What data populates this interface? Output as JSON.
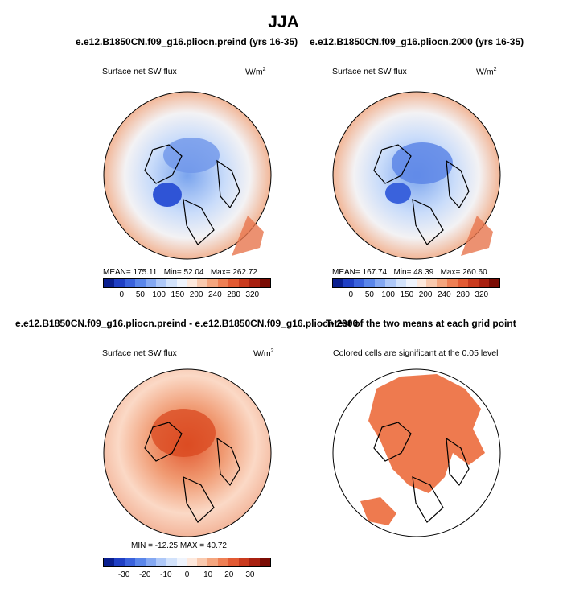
{
  "main_title": "JJA",
  "panels": {
    "p1": {
      "title": "e.e12.B1850CN.f09_g16.pliocn.preind (yrs 16-35)",
      "left_label": "Surface net SW flux",
      "units_base": "W/m",
      "units_exp": "2",
      "stats": {
        "mean_label": "MEAN=",
        "mean": "175.11",
        "min_label": "Min=",
        "min": "52.04",
        "max_label": "Max=",
        "max": "262.72"
      }
    },
    "p2": {
      "title": "e.e12.B1850CN.f09_g16.pliocn.2000 (yrs 16-35)",
      "left_label": "Surface net SW flux",
      "units_base": "W/m",
      "units_exp": "2",
      "stats": {
        "mean_label": "MEAN=",
        "mean": "167.74",
        "min_label": "Min=",
        "min": "48.39",
        "max_label": "Max=",
        "max": "260.60"
      }
    },
    "p3": {
      "title": "e.e12.B1850CN.f09_g16.pliocn.preind - e.e12.B1850CN.f09_g16.pliocn.2000",
      "left_label": "Surface net SW flux",
      "units_base": "W/m",
      "units_exp": "2",
      "stats_text": "MIN = -12.25   MAX = 40.72"
    },
    "p4": {
      "title": "T-test of the two means at each grid point",
      "subtitle": "Colored cells are significant at the 0.05 level"
    }
  },
  "colorbar_top": {
    "labels": [
      "0",
      "50",
      "100",
      "150",
      "200",
      "240",
      "280",
      "320"
    ],
    "colors": [
      "#0a1f8f",
      "#1f3fc4",
      "#3a62dc",
      "#5a86ea",
      "#84a8f2",
      "#aec8f8",
      "#d2e2fb",
      "#eef3fc",
      "#fde8dc",
      "#f9c9ae",
      "#f4a57e",
      "#ee7f54",
      "#e25a33",
      "#c93a1e",
      "#a82010",
      "#7a0c04"
    ]
  },
  "colorbar_diff": {
    "labels": [
      "-30",
      "-20",
      "-10",
      "0",
      "10",
      "20",
      "30"
    ],
    "colors": [
      "#0a1f8f",
      "#1f3fc4",
      "#3a62dc",
      "#5a86ea",
      "#84a8f2",
      "#aec8f8",
      "#d2e2fb",
      "#eef3fc",
      "#fde8dc",
      "#f9c9ae",
      "#f4a57e",
      "#ee7f54",
      "#e25a33",
      "#c93a1e",
      "#a82010",
      "#7a0c04"
    ]
  },
  "chart_data": [
    {
      "type": "heatmap",
      "title": "e.e12.B1850CN.f09_g16.pliocn.preind (yrs 16-35)",
      "variable": "Surface net SW flux",
      "units": "W/m2",
      "projection": "polar stereographic (north pole)",
      "mean": 175.11,
      "min": 52.04,
      "max": 262.72,
      "colorbar_levels": [
        0,
        50,
        100,
        150,
        200,
        240,
        280,
        320
      ]
    },
    {
      "type": "heatmap",
      "title": "e.e12.B1850CN.f09_g16.pliocn.2000 (yrs 16-35)",
      "variable": "Surface net SW flux",
      "units": "W/m2",
      "projection": "polar stereographic (north pole)",
      "mean": 167.74,
      "min": 48.39,
      "max": 260.6,
      "colorbar_levels": [
        0,
        50,
        100,
        150,
        200,
        240,
        280,
        320
      ]
    },
    {
      "type": "heatmap",
      "title": "e.e12.B1850CN.f09_g16.pliocn.preind - e.e12.B1850CN.f09_g16.pliocn.2000",
      "variable": "Surface net SW flux",
      "units": "W/m2",
      "projection": "polar stereographic (north pole)",
      "min": -12.25,
      "max": 40.72,
      "colorbar_levels": [
        -30,
        -20,
        -10,
        0,
        10,
        20,
        30
      ]
    },
    {
      "type": "heatmap",
      "title": "T-test of the two means at each grid point",
      "subtitle": "Colored cells are significant at the 0.05 level",
      "significance_level": 0.05
    }
  ]
}
